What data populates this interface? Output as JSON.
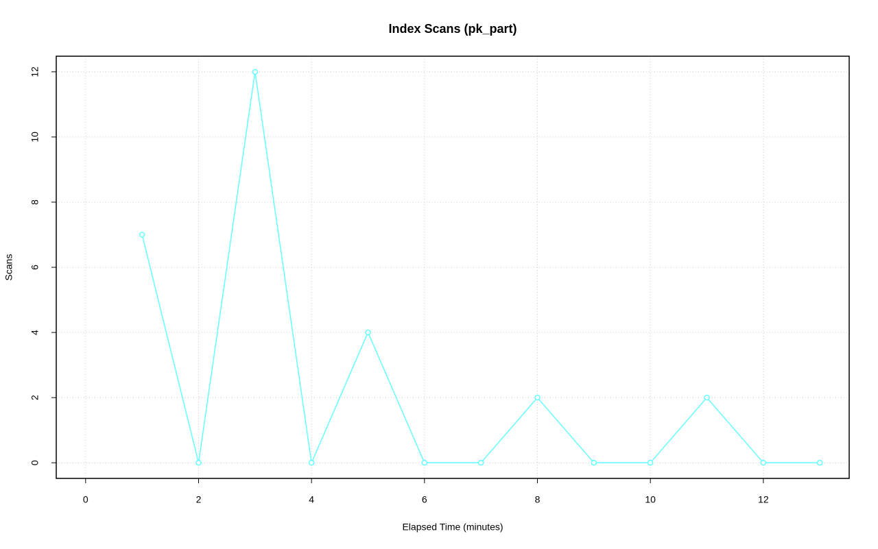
{
  "chart_data": {
    "type": "line",
    "title": "Index Scans (pk_part)",
    "x_label": "Elapsed Time (minutes)",
    "y_label": "Scans",
    "x": [
      1,
      2,
      3,
      4,
      5,
      6,
      7,
      8,
      9,
      10,
      11,
      12,
      13
    ],
    "series": [
      {
        "name": "pk_part",
        "color": "#66ffff",
        "values": [
          7,
          0,
          12,
          0,
          4,
          0,
          0,
          2,
          0,
          0,
          2,
          0,
          0
        ]
      }
    ],
    "xlim": [
      -0.52,
      13.52
    ],
    "xticks": [
      0,
      2,
      4,
      6,
      8,
      10,
      12
    ],
    "ylim": [
      -0.48,
      12.48
    ],
    "yticks": [
      0,
      2,
      4,
      6,
      8,
      10,
      12
    ],
    "grid": true
  }
}
